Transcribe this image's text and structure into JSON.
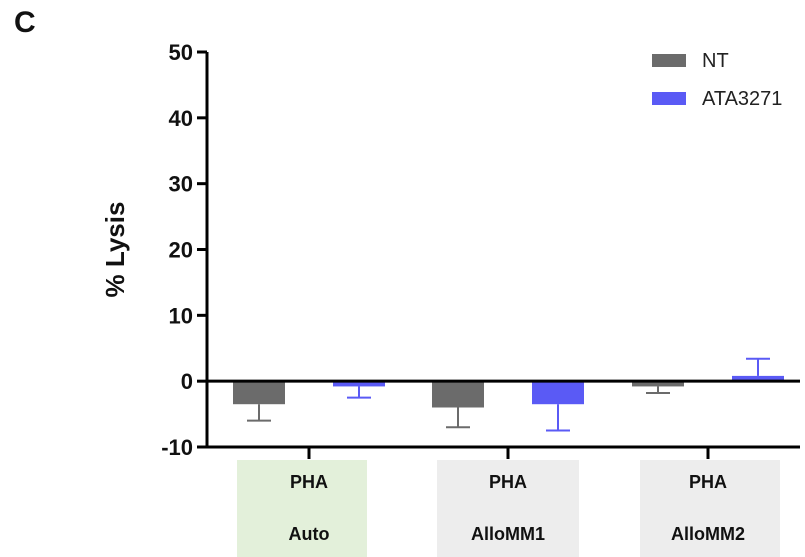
{
  "panel_label": "C",
  "chart_data": {
    "type": "bar",
    "title": "",
    "ylabel": "% Lysis",
    "xlabel": "",
    "ylim": [
      -10,
      50
    ],
    "yticks": [
      -10,
      0,
      10,
      20,
      30,
      40,
      50
    ],
    "ytick_labels": [
      "-10",
      "0",
      "10",
      "20",
      "30",
      "40",
      "50"
    ],
    "categories": [
      {
        "line1": "PHA",
        "line2": "Auto",
        "bg": "#e3f0da"
      },
      {
        "line1": "PHA",
        "line2": "AlloMM1",
        "bg": "#ededed"
      },
      {
        "line1": "PHA",
        "line2": "AlloMM2",
        "bg": "#ededed"
      }
    ],
    "series": [
      {
        "name": "NT",
        "color": "#6b6b6b",
        "values": [
          -3.5,
          -4.0,
          -0.8
        ],
        "errors": [
          2.5,
          3.0,
          1.0
        ]
      },
      {
        "name": "ATA3271",
        "color": "#5a5af5",
        "values": [
          -0.8,
          -3.5,
          0.8
        ],
        "errors": [
          1.7,
          4.0,
          2.6
        ]
      }
    ],
    "legend_position": "top-right",
    "grid": false
  }
}
